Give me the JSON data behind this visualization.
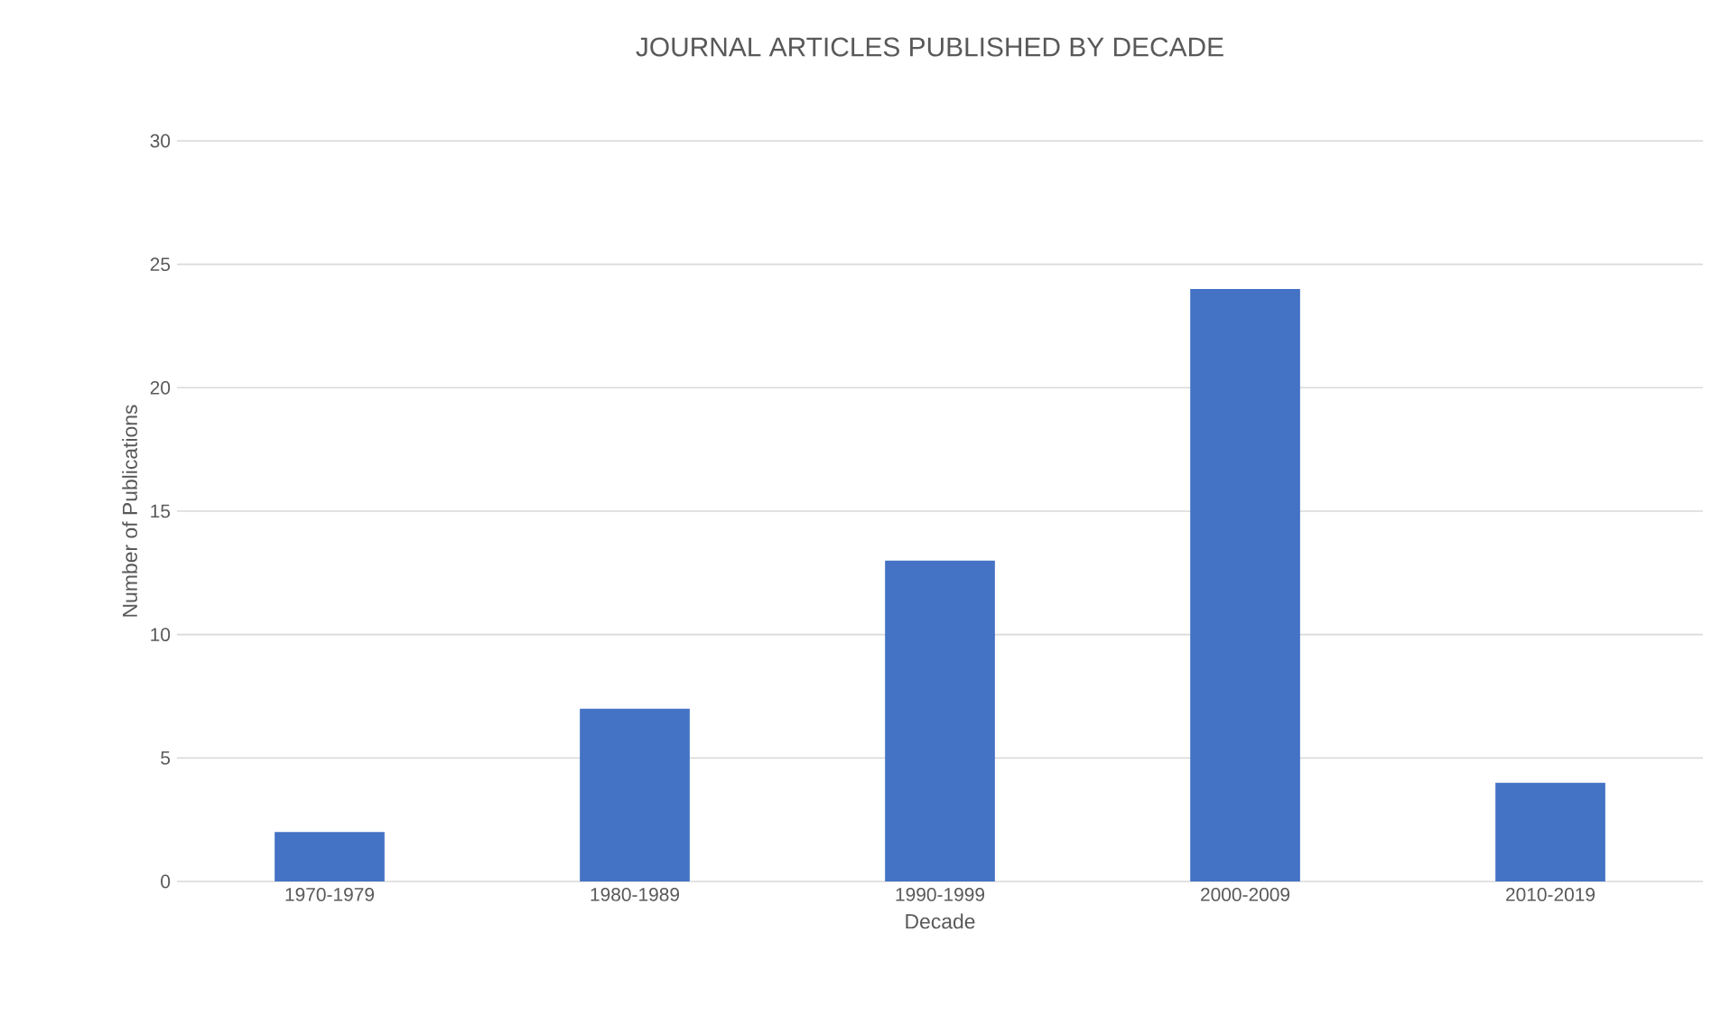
{
  "chart_data": {
    "type": "bar",
    "title": "JOURNAL ARTICLES PUBLISHED BY DECADE",
    "xlabel": "Decade",
    "ylabel": "Number of Publications",
    "categories": [
      "1970-1979",
      "1980-1989",
      "1990-1999",
      "2000-2009",
      "2010-2019"
    ],
    "values": [
      2,
      7,
      13,
      24,
      4
    ],
    "color": "#4472c4",
    "ylim": [
      0,
      30
    ],
    "yticks": [
      0,
      5,
      10,
      15,
      20,
      25,
      30
    ],
    "grid": "y"
  }
}
